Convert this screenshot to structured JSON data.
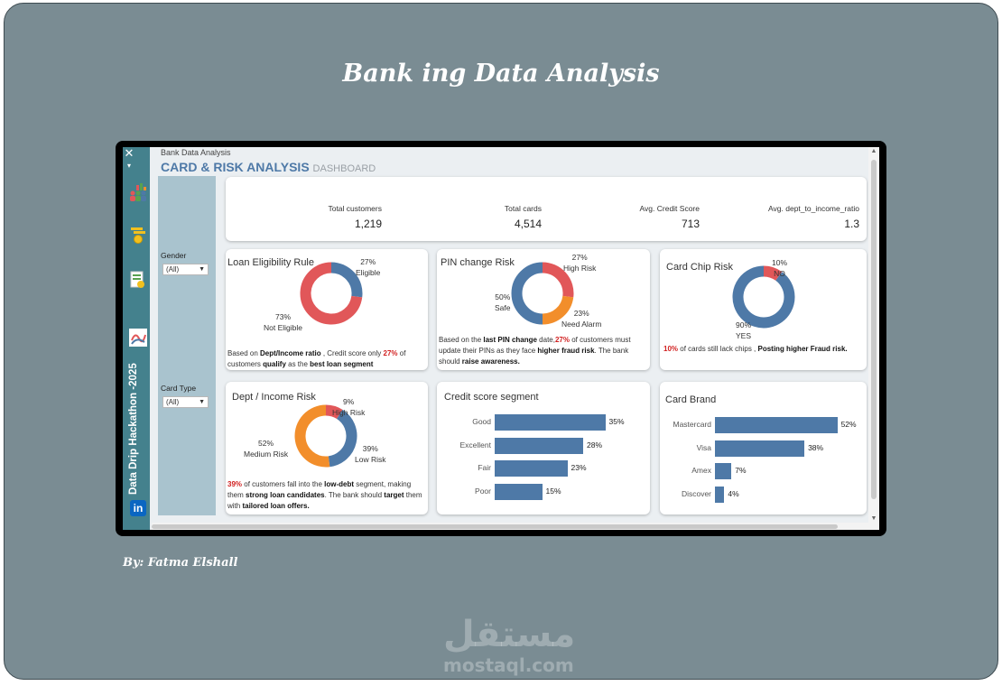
{
  "slide": {
    "title": "Bank ing Data Analysis",
    "byline": "By: Fatma Elshall",
    "watermark_arabic": "مستقل",
    "watermark_latin": "mostaql.com"
  },
  "sidebar": {
    "close_glyph": "✕",
    "caret_glyph": "▾",
    "vertical_text": "Data Drip Hackathon -2025",
    "linkedin_text": "in",
    "icons": [
      "people-chart-icon",
      "coins-icon",
      "report-icon",
      "brand-logo-icon",
      "linkedin-icon"
    ]
  },
  "header": {
    "small_title": "Bank Data Analysis",
    "main_title": "CARD & RISK ANALYSIS",
    "subtitle": "DASHBOARD"
  },
  "filters": {
    "gender": {
      "label": "Gender",
      "value": "(All)"
    },
    "card_type": {
      "label": "Card Type",
      "value": "(All)"
    }
  },
  "kpis": [
    {
      "label": "Total customers",
      "value": "1,219"
    },
    {
      "label": "Total cards",
      "value": "4,514"
    },
    {
      "label": "Avg. Credit Score",
      "value": "713"
    },
    {
      "label": "Avg. dept_to_income_ratio",
      "value": "1.3"
    }
  ],
  "colors": {
    "blue": "#4e79a7",
    "red": "#e15759",
    "orange": "#f28e2b",
    "teal_sidebar": "#44818d",
    "filter_panel": "#a9c3ce"
  },
  "loan_card": {
    "title": "Loan Eligibility Rule",
    "eligible_pct": "27%",
    "eligible_label": "Eligible",
    "not_eligible_pct": "73%",
    "not_eligible_label": "Not Eligible",
    "note_1": "Based on ",
    "note_2": "Dept/Income ratio",
    "note_3": " , Credit score only ",
    "note_4": "27%",
    "note_5": " of customers ",
    "note_6": "qualify",
    "note_7": " as the ",
    "note_8": "best loan segment"
  },
  "pin_card": {
    "title": "PIN change Risk",
    "high_pct": "27%",
    "high_label": "High Risk",
    "safe_pct": "50%",
    "safe_label": "Safe",
    "alarm_pct": "23%",
    "alarm_label": "Need Alarm",
    "note_1": "Based on the ",
    "note_2": "last PIN change",
    "note_3": " date,",
    "note_4": "27%",
    "note_5": " of customers must update their PINs as they face ",
    "note_6": "higher fraud risk",
    "note_7": ". The bank should ",
    "note_8": "raise awareness."
  },
  "chip_card": {
    "title": "Card Chip Risk",
    "no_pct": "10%",
    "no_label": "NO",
    "yes_pct": "90%",
    "yes_label": "YES",
    "note_1": "10%",
    "note_2": " of cards still lack chips , ",
    "note_3": "Posting higher Fraud risk."
  },
  "dti_card": {
    "title": "Dept / Income Risk",
    "high_pct": "9%",
    "high_label": "High Risk",
    "medium_pct": "52%",
    "medium_label": "Medium Risk",
    "low_pct": "39%",
    "low_label": "Low Risk",
    "note_1": "39%",
    "note_2": " of customers fall into the ",
    "note_3": "low-debt",
    "note_4": " segment, making them ",
    "note_5": "strong loan candidates",
    "note_6": ". The bank should ",
    "note_7": "target",
    "note_8": " them with ",
    "note_9": "tailored loan offers."
  },
  "chart_data": [
    {
      "type": "pie",
      "title": "Loan Eligibility Rule",
      "categories": [
        "Eligible",
        "Not Eligible"
      ],
      "values": [
        27,
        73
      ],
      "colors": [
        "#4e79a7",
        "#e15759"
      ]
    },
    {
      "type": "pie",
      "title": "PIN change Risk",
      "categories": [
        "High Risk",
        "Need Alarm",
        "Safe"
      ],
      "values": [
        27,
        23,
        50
      ],
      "colors": [
        "#e15759",
        "#f28e2b",
        "#4e79a7"
      ]
    },
    {
      "type": "pie",
      "title": "Card Chip Risk",
      "categories": [
        "NO",
        "YES"
      ],
      "values": [
        10,
        90
      ],
      "colors": [
        "#e15759",
        "#4e79a7"
      ]
    },
    {
      "type": "pie",
      "title": "Dept / Income Risk",
      "categories": [
        "High Risk",
        "Low Risk",
        "Medium Risk"
      ],
      "values": [
        9,
        39,
        52
      ],
      "colors": [
        "#e15759",
        "#4e79a7",
        "#f28e2b"
      ]
    },
    {
      "type": "bar",
      "title": "Credit score segment",
      "categories": [
        "Good",
        "Excellent",
        "Fair",
        "Poor"
      ],
      "values": [
        35,
        28,
        23,
        15
      ],
      "value_labels": [
        "35%",
        "28%",
        "23%",
        "15%"
      ],
      "xlim": [
        0,
        40
      ]
    },
    {
      "type": "bar",
      "title": "Card Brand",
      "categories": [
        "Mastercard",
        "Visa",
        "Amex",
        "Discover"
      ],
      "values": [
        52,
        38,
        7,
        4
      ],
      "value_labels": [
        "52%",
        "38%",
        "7%",
        "4%"
      ],
      "xlim": [
        0,
        56
      ]
    }
  ]
}
